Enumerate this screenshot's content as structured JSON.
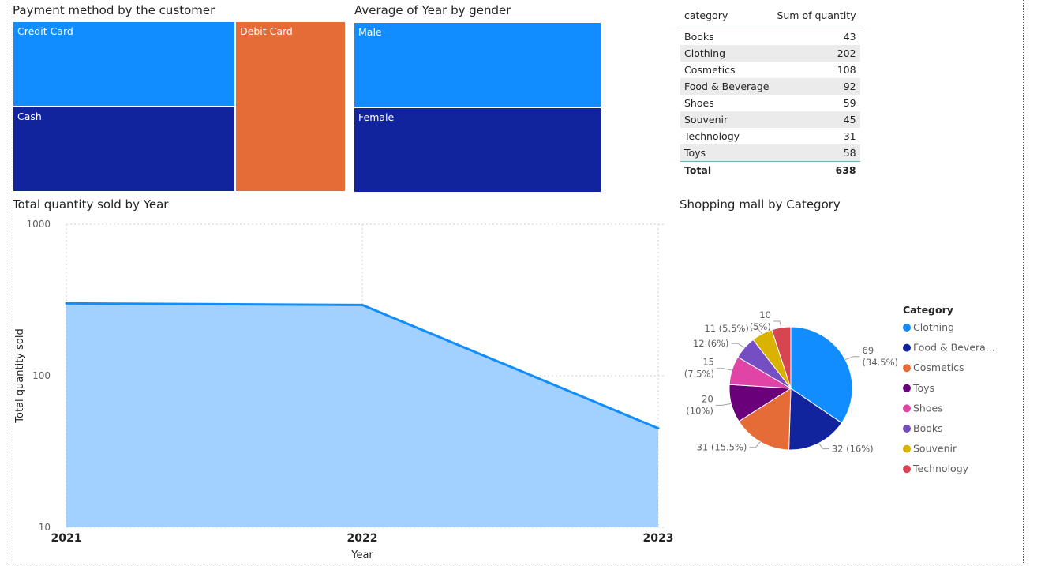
{
  "treemap_payment": {
    "title": "Payment method by the customer",
    "items": [
      {
        "label": "Credit Card",
        "color": "#118dff"
      },
      {
        "label": "Cash",
        "color": "#12239e"
      },
      {
        "label": "Debit Card",
        "color": "#e66c37"
      }
    ]
  },
  "treemap_gender": {
    "title": "Average of Year by gender",
    "items": [
      {
        "label": "Male",
        "color": "#118dff"
      },
      {
        "label": "Female",
        "color": "#12239e"
      }
    ]
  },
  "table": {
    "headers": [
      "category",
      "Sum of quantity"
    ],
    "rows": [
      [
        "Books",
        "43"
      ],
      [
        "Clothing",
        "202"
      ],
      [
        "Cosmetics",
        "108"
      ],
      [
        "Food & Beverage",
        "92"
      ],
      [
        "Shoes",
        "59"
      ],
      [
        "Souvenir",
        "45"
      ],
      [
        "Technology",
        "31"
      ],
      [
        "Toys",
        "58"
      ]
    ],
    "total": [
      "Total",
      "638"
    ]
  },
  "chart_data": [
    {
      "type": "area",
      "title": "Total quantity sold by Year",
      "xlabel": "Year",
      "ylabel": "Total quantity sold",
      "y_scale": "log",
      "ylim": [
        10,
        1000
      ],
      "y_ticks": [
        "1000",
        "100",
        "10"
      ],
      "x": [
        "2021",
        "2022",
        "2023"
      ],
      "series": [
        {
          "values": [
            300,
            293,
            45
          ]
        }
      ],
      "line_color": "#118dff",
      "fill_color": "#a3d1ff",
      "grid": true
    },
    {
      "type": "pie",
      "title": "Shopping mall by Category",
      "legend_title": "Category",
      "legend_placement": "right",
      "slices": [
        {
          "name": "Clothing",
          "legend": "Clothing",
          "value": 69,
          "label": "69\n(34.5%)",
          "color": "#118dff"
        },
        {
          "name": "Food & Beverage",
          "legend": "Food & Bevera...",
          "value": 32,
          "label": "32 (16%)",
          "color": "#12239e"
        },
        {
          "name": "Cosmetics",
          "legend": "Cosmetics",
          "value": 31,
          "label": "31 (15.5%)",
          "color": "#e66c37"
        },
        {
          "name": "Toys",
          "legend": "Toys",
          "value": 20,
          "label": "20\n(10%)",
          "color": "#6b007b"
        },
        {
          "name": "Shoes",
          "legend": "Shoes",
          "value": 15,
          "label": "15\n(7.5%)",
          "color": "#e044a7"
        },
        {
          "name": "Books",
          "legend": "Books",
          "value": 12,
          "label": "12 (6%)",
          "color": "#744ec2"
        },
        {
          "name": "Souvenir",
          "legend": "Souvenir",
          "value": 11,
          "label": "11 (5.5%)",
          "color": "#d9b300"
        },
        {
          "name": "Technology",
          "legend": "Technology",
          "value": 10,
          "label": "10\n(5%)",
          "color": "#d64550"
        }
      ]
    }
  ]
}
